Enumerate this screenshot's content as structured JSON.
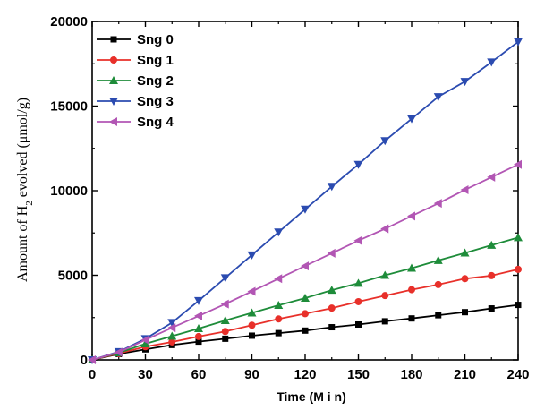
{
  "chart_data": {
    "type": "line",
    "xlabel": "Time (M i n)",
    "ylabel": {
      "prefix": "Amount of H",
      "subscript": "2",
      "suffix": " evolved (μmol/g)"
    },
    "xlim": [
      0,
      240
    ],
    "ylim": [
      0,
      20000
    ],
    "xticks": [
      "0",
      "30",
      "60",
      "90",
      "120",
      "150",
      "180",
      "210",
      "240"
    ],
    "yticks": [
      "0",
      "5000",
      "10000",
      "15000",
      "20000"
    ],
    "legend_position": "top-left",
    "x": [
      0,
      15,
      30,
      45,
      60,
      75,
      90,
      105,
      120,
      135,
      150,
      165,
      180,
      195,
      210,
      225,
      240
    ],
    "series": [
      {
        "name": "Sng 0",
        "color": "#000000",
        "marker": "square",
        "values": [
          0,
          350,
          620,
          880,
          1080,
          1250,
          1430,
          1580,
          1730,
          1930,
          2090,
          2280,
          2450,
          2640,
          2820,
          3040,
          3250
        ]
      },
      {
        "name": "Sng 1",
        "color": "#e8302a",
        "marker": "circle",
        "values": [
          0,
          380,
          780,
          1060,
          1380,
          1680,
          2050,
          2420,
          2730,
          3060,
          3440,
          3800,
          4150,
          4450,
          4800,
          4980,
          5350
        ]
      },
      {
        "name": "Sng 2",
        "color": "#1e8c3a",
        "marker": "triangle-up",
        "values": [
          0,
          420,
          950,
          1400,
          1850,
          2330,
          2780,
          3230,
          3650,
          4120,
          4530,
          5000,
          5420,
          5880,
          6320,
          6780,
          7230
        ]
      },
      {
        "name": "Sng 3",
        "color": "#2b4bb0",
        "marker": "triangle-down",
        "values": [
          0,
          480,
          1250,
          2200,
          3500,
          4850,
          6200,
          7550,
          8900,
          10250,
          11550,
          12950,
          14250,
          15550,
          16450,
          17600,
          18800
        ]
      },
      {
        "name": "Sng 4",
        "color": "#b256b4",
        "marker": "triangle-left",
        "values": [
          0,
          450,
          1180,
          1900,
          2600,
          3300,
          4050,
          4800,
          5550,
          6300,
          7050,
          7750,
          8500,
          9250,
          10050,
          10800,
          11550
        ]
      }
    ]
  }
}
